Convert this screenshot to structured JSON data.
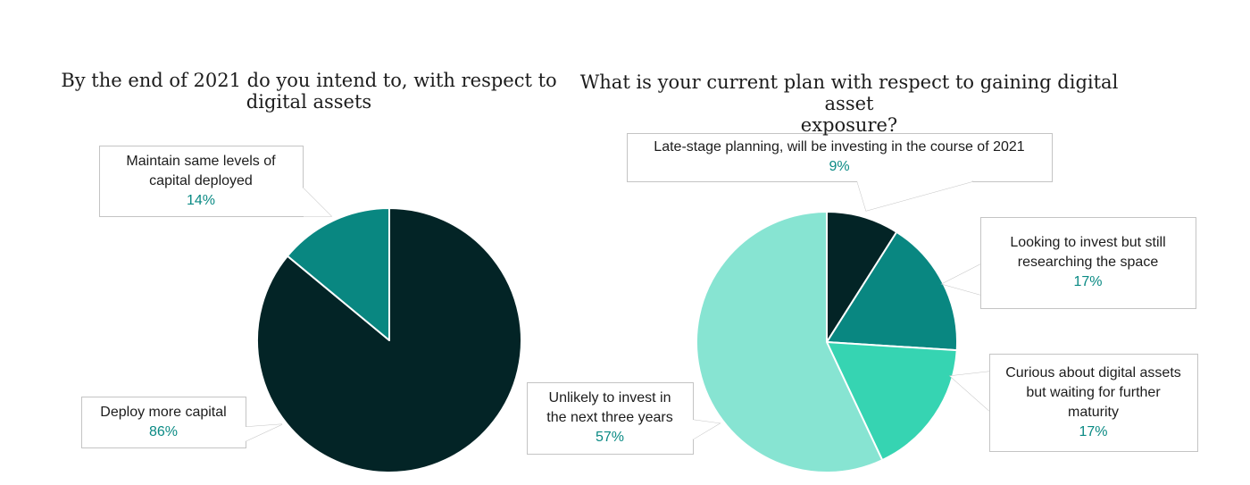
{
  "chart_data": [
    {
      "type": "pie",
      "title": "By the end of 2021 do you intend to, with respect to digital assets",
      "title_lines": [
        "By the end of 2021 do you intend to, with respect to",
        "digital assets"
      ],
      "slices": [
        {
          "label": "Deploy more capital",
          "label_lines": [
            "Deploy more capital"
          ],
          "value": 86,
          "display": "86%",
          "color": "#032426"
        },
        {
          "label": "Maintain same levels of capital deployed",
          "label_lines": [
            "Maintain same levels of",
            "capital deployed"
          ],
          "value": 14,
          "display": "14%",
          "color": "#098781"
        }
      ]
    },
    {
      "type": "pie",
      "title": "What is your current plan with respect to gaining digital asset exposure?",
      "title_lines": [
        "What is your current plan with respect to gaining digital asset",
        "exposure?"
      ],
      "slices": [
        {
          "label": "Late-stage planning, will be investing in the course of 2021",
          "label_lines": [
            "Late-stage planning, will be investing in the course of 2021"
          ],
          "value": 9,
          "display": "9%",
          "color": "#032426"
        },
        {
          "label": "Looking to invest but still researching the space",
          "label_lines": [
            "Looking to invest but still",
            "researching the space"
          ],
          "value": 17,
          "display": "17%",
          "color": "#098781"
        },
        {
          "label": "Curious about digital assets but waiting for further maturity",
          "label_lines": [
            "Curious about digital assets",
            "but waiting for further",
            "maturity"
          ],
          "value": 17,
          "display": "17%",
          "color": "#36d4b2"
        },
        {
          "label": "Unlikely to invest in the next three years",
          "label_lines": [
            "Unlikely to invest in",
            "the next three years"
          ],
          "value": 57,
          "display": "57%",
          "color": "#87e4d2"
        }
      ]
    }
  ]
}
